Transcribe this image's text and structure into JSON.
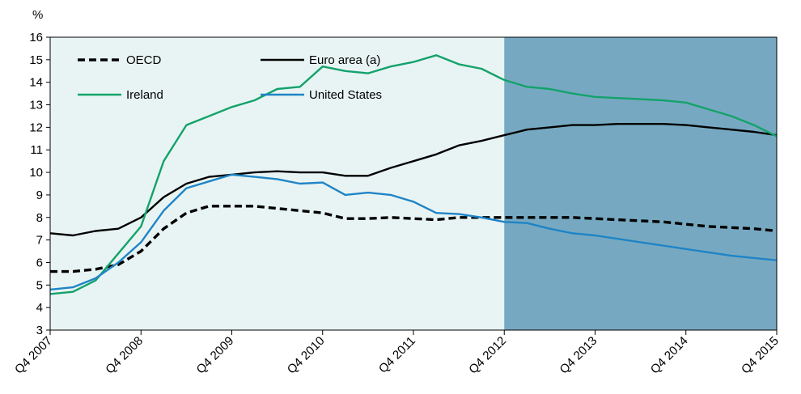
{
  "chart_data": {
    "type": "line",
    "unit_label": "%",
    "x_tick_labels": [
      "Q4 2007",
      "Q4 2008",
      "Q4 2009",
      "Q4 2010",
      "Q4 2011",
      "Q4 2012",
      "Q4 2013",
      "Q4 2014",
      "Q4 2015"
    ],
    "ylim": [
      3,
      16
    ],
    "y_ticks": [
      3,
      4,
      5,
      6,
      7,
      8,
      9,
      10,
      11,
      12,
      13,
      14,
      15,
      16
    ],
    "projection_start_year": 2012.75,
    "colors": {
      "plot_background": "#e8f4f3",
      "projection_shading": "#76a9c1",
      "axis": "#000000"
    },
    "legend_position": "top-left",
    "series": [
      {
        "name": "OECD",
        "color": "#000000",
        "dashed": true,
        "x": [
          2007.75,
          2008,
          2008.25,
          2008.5,
          2008.75,
          2009,
          2009.25,
          2009.5,
          2009.75,
          2010,
          2010.25,
          2010.5,
          2010.75,
          2011,
          2011.25,
          2011.5,
          2011.75,
          2012,
          2012.25,
          2012.5,
          2012.75,
          2013,
          2013.25,
          2013.5,
          2013.75,
          2014,
          2014.25,
          2014.5,
          2014.75,
          2015,
          2015.25,
          2015.5,
          2015.75
        ],
        "y": [
          5.6,
          5.6,
          5.7,
          5.9,
          6.5,
          7.5,
          8.2,
          8.5,
          8.5,
          8.5,
          8.4,
          8.3,
          8.2,
          7.95,
          7.95,
          8.0,
          7.95,
          7.9,
          8.0,
          8.0,
          8.0,
          8.0,
          8.0,
          8.0,
          7.95,
          7.9,
          7.85,
          7.8,
          7.7,
          7.6,
          7.55,
          7.5,
          7.4
        ]
      },
      {
        "name": "Euro area (a)",
        "color": "#000000",
        "dashed": false,
        "x": [
          2007.75,
          2008,
          2008.25,
          2008.5,
          2008.75,
          2009,
          2009.25,
          2009.5,
          2009.75,
          2010,
          2010.25,
          2010.5,
          2010.75,
          2011,
          2011.25,
          2011.5,
          2011.75,
          2012,
          2012.25,
          2012.5,
          2012.75,
          2013,
          2013.25,
          2013.5,
          2013.75,
          2014,
          2014.25,
          2014.5,
          2014.75,
          2015,
          2015.25,
          2015.5,
          2015.75
        ],
        "y": [
          7.3,
          7.2,
          7.4,
          7.5,
          8.0,
          8.9,
          9.5,
          9.8,
          9.9,
          10.0,
          10.05,
          10.0,
          10.0,
          9.85,
          9.85,
          10.2,
          10.5,
          10.8,
          11.2,
          11.4,
          11.65,
          11.9,
          12.0,
          12.1,
          12.1,
          12.15,
          12.15,
          12.15,
          12.1,
          12.0,
          11.9,
          11.8,
          11.65
        ]
      },
      {
        "name": "Ireland",
        "color": "#14a26b",
        "dashed": false,
        "x": [
          2007.75,
          2008,
          2008.25,
          2008.5,
          2008.75,
          2009,
          2009.25,
          2009.5,
          2009.75,
          2010,
          2010.25,
          2010.5,
          2010.75,
          2011,
          2011.25,
          2011.5,
          2011.75,
          2012,
          2012.25,
          2012.5,
          2012.75,
          2013,
          2013.25,
          2013.5,
          2013.75,
          2014,
          2014.25,
          2014.5,
          2014.75,
          2015,
          2015.25,
          2015.5,
          2015.75
        ],
        "y": [
          4.6,
          4.7,
          5.2,
          6.4,
          7.6,
          10.5,
          12.1,
          12.5,
          12.9,
          13.2,
          13.7,
          13.8,
          14.7,
          14.5,
          14.4,
          14.7,
          14.9,
          15.2,
          14.8,
          14.6,
          14.1,
          13.8,
          13.7,
          13.5,
          13.35,
          13.3,
          13.25,
          13.2,
          13.1,
          12.8,
          12.5,
          12.1,
          11.6
        ]
      },
      {
        "name": "United States",
        "color": "#1f84c6",
        "dashed": false,
        "x": [
          2007.75,
          2008,
          2008.25,
          2008.5,
          2008.75,
          2009,
          2009.25,
          2009.5,
          2009.75,
          2010,
          2010.25,
          2010.5,
          2010.75,
          2011,
          2011.25,
          2011.5,
          2011.75,
          2012,
          2012.25,
          2012.5,
          2012.75,
          2013,
          2013.25,
          2013.5,
          2013.75,
          2014,
          2014.25,
          2014.5,
          2014.75,
          2015,
          2015.25,
          2015.5,
          2015.75
        ],
        "y": [
          4.8,
          4.9,
          5.3,
          6.0,
          6.9,
          8.3,
          9.3,
          9.6,
          9.9,
          9.8,
          9.7,
          9.5,
          9.55,
          9.0,
          9.1,
          9.0,
          8.7,
          8.2,
          8.15,
          8.0,
          7.8,
          7.75,
          7.5,
          7.3,
          7.2,
          7.05,
          6.9,
          6.75,
          6.6,
          6.45,
          6.3,
          6.2,
          6.1
        ]
      }
    ]
  }
}
